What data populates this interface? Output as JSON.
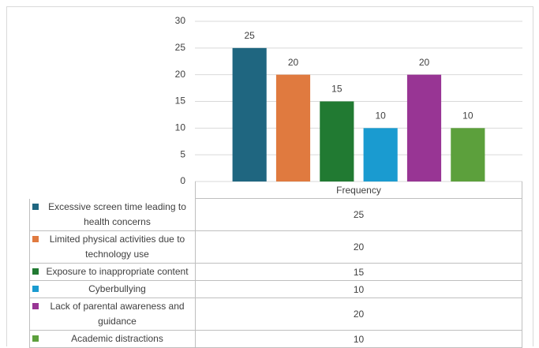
{
  "chart_data": {
    "type": "bar",
    "categories": [
      "Frequency"
    ],
    "series": [
      {
        "name": "Excessive screen time leading to health concerns",
        "color": "#1f6680",
        "values": [
          25
        ]
      },
      {
        "name": "Limited physical activities due to technology use",
        "color": "#e07a3f",
        "values": [
          20
        ]
      },
      {
        "name": "Exposure to inappropriate content",
        "color": "#217a32",
        "values": [
          15
        ]
      },
      {
        "name": "Cyberbullying",
        "color": "#1a9bd0",
        "values": [
          10
        ]
      },
      {
        "name": "Lack of parental awareness and guidance",
        "color": "#983594",
        "values": [
          20
        ]
      },
      {
        "name": "Academic distractions",
        "color": "#5ca03c",
        "values": [
          10
        ]
      }
    ],
    "ylim": [
      0,
      30
    ],
    "yticks": [
      0,
      5,
      10,
      15,
      20,
      25,
      30
    ],
    "grid": true,
    "data_table": true
  }
}
